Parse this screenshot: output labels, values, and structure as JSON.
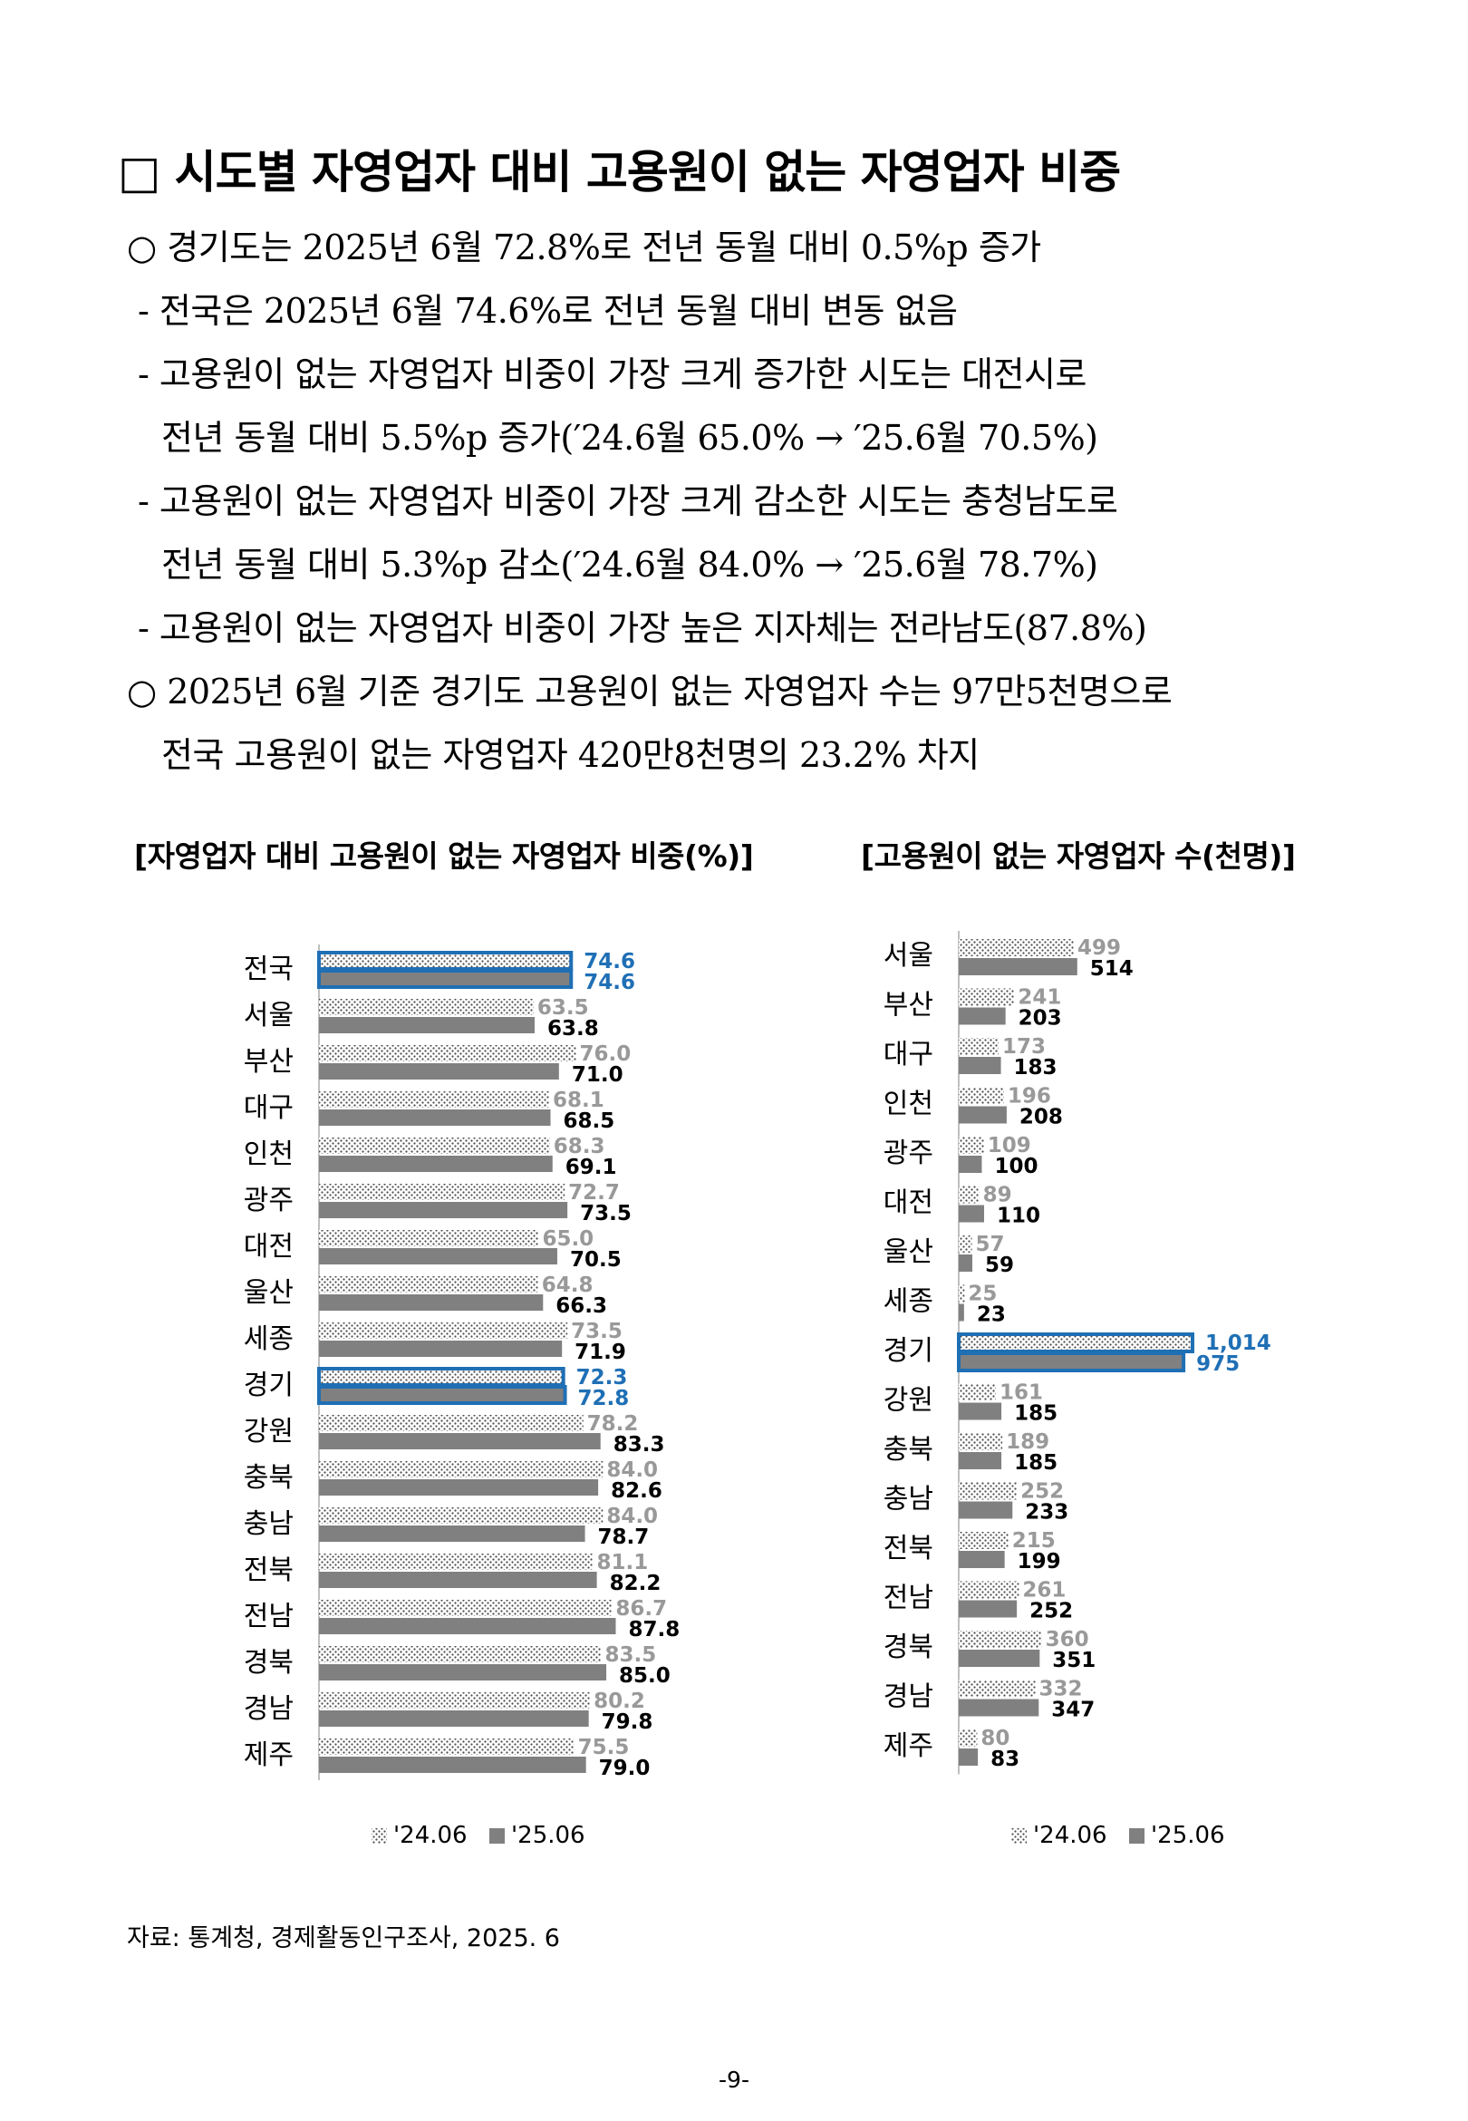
{
  "title": "□ 시도별 자영업자 대비 고용원이 없는 자영업자 비중",
  "bullets": [
    "○ 경기도는 2025년 6월 72.8%로 전년 동월 대비 0.5%p 증가",
    "- 전국은 2025년 6월 74.6%로 전년 동월 대비 변동 없음",
    "- 고용원이 없는 자영업자 비중이 가장 크게 증가한 시도는 대전시로",
    "전년 동월 대비 5.5%p 증가(′24.6월 65.0% → ′25.6월 70.5%)",
    "- 고용원이 없는 자영업자 비중이 가장 크게 감소한 시도는 충청남도로",
    "전년 동월 대비 5.3%p 감소(′24.6월 84.0% → ′25.6월 78.7%)",
    "- 고용원이 없는 자영업자 비중이 가장 높은 지자체는 전라남도(87.8%)",
    "○ 2025년 6월 기준 경기도 고용원이 없는 자영업자 수는 97만5천명으로",
    "전국 고용원이 없는 자영업자 420만8천명의 23.2% 차지"
  ],
  "chart_data": [
    {
      "type": "bar",
      "orientation": "horizontal",
      "title": "[자영업자 대비 고용원이 없는 자영업자 비중(%)]",
      "categories": [
        "전국",
        "서울",
        "부산",
        "대구",
        "인천",
        "광주",
        "대전",
        "울산",
        "세종",
        "경기",
        "강원",
        "충북",
        "충남",
        "전북",
        "전남",
        "경북",
        "경남",
        "제주"
      ],
      "series": [
        {
          "name": "'24.06",
          "values": [
            74.6,
            63.5,
            76.0,
            68.1,
            68.3,
            72.7,
            65.0,
            64.8,
            73.5,
            72.3,
            78.2,
            84.0,
            84.0,
            81.1,
            86.7,
            83.5,
            80.2,
            75.5
          ]
        },
        {
          "name": "'25.06",
          "values": [
            74.6,
            63.8,
            71.0,
            68.5,
            69.1,
            73.5,
            70.5,
            66.3,
            71.9,
            72.8,
            83.3,
            82.6,
            78.7,
            82.2,
            87.8,
            85.0,
            79.8,
            79.0
          ]
        }
      ],
      "labels": [
        [
          "74.6",
          "63.5",
          "76.0",
          "68.1",
          "68.3",
          "72.7",
          "65.0",
          "64.8",
          "73.5",
          "72.3",
          "78.2",
          "84.0",
          "84.0",
          "81.1",
          "86.7",
          "83.5",
          "80.2",
          "75.5"
        ],
        [
          "74.6",
          "63.8",
          "71.0",
          "68.5",
          "69.1",
          "73.5",
          "70.5",
          "66.3",
          "71.9",
          "72.8",
          "83.3",
          "82.6",
          "78.7",
          "82.2",
          "87.8",
          "85.0",
          "79.8",
          "79.0"
        ]
      ],
      "highlight": [
        "전국",
        "경기"
      ],
      "xlim": [
        0,
        100
      ],
      "legend": "bottom"
    },
    {
      "type": "bar",
      "orientation": "horizontal",
      "title": "[고용원이 없는 자영업자 수(천명)]",
      "categories": [
        "서울",
        "부산",
        "대구",
        "인천",
        "광주",
        "대전",
        "울산",
        "세종",
        "경기",
        "강원",
        "충북",
        "충남",
        "전북",
        "전남",
        "경북",
        "경남",
        "제주"
      ],
      "series": [
        {
          "name": "'24.06",
          "values": [
            499,
            241,
            173,
            196,
            109,
            89,
            57,
            25,
            1014,
            161,
            189,
            252,
            215,
            261,
            360,
            332,
            80
          ]
        },
        {
          "name": "'25.06",
          "values": [
            514,
            203,
            183,
            208,
            100,
            110,
            59,
            23,
            975,
            185,
            185,
            233,
            199,
            252,
            351,
            347,
            83
          ]
        }
      ],
      "labels": [
        [
          "499",
          "241",
          "173",
          "196",
          "109",
          "89",
          "57",
          "25",
          "1,014",
          "161",
          "189",
          "252",
          "215",
          "261",
          "360",
          "332",
          "80"
        ],
        [
          "514",
          "203",
          "183",
          "208",
          "100",
          "110",
          "59",
          "23",
          "975",
          "185",
          "185",
          "233",
          "199",
          "252",
          "351",
          "347",
          "83"
        ]
      ],
      "highlight": [
        "경기"
      ],
      "xlim": [
        0,
        1014
      ],
      "legend": "bottom"
    }
  ],
  "legend_labels": [
    "'24.06",
    "'25.06"
  ],
  "colors": {
    "series_2024_text": "#999999",
    "series_2025": "#808080",
    "highlight": "#1f6fb5",
    "dots": "#4a4a4a"
  },
  "source": "자료: 통계청, 경제활동인구조사, 2025. 6",
  "page_number": "-9-"
}
